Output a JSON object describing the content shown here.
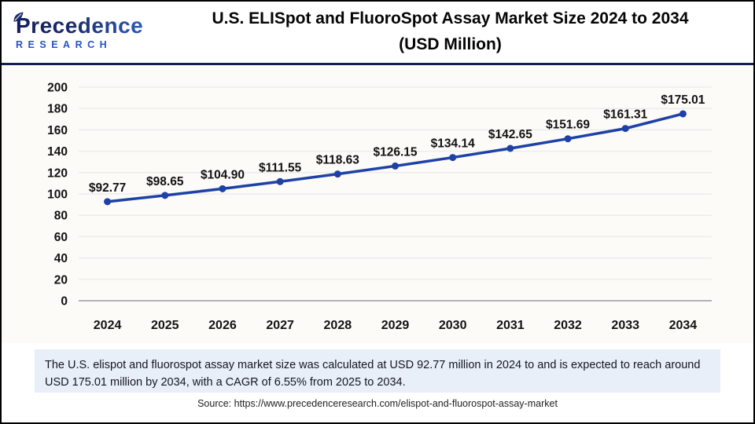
{
  "header": {
    "logo": {
      "name": "Precedence",
      "subtitle": "RESEARCH"
    },
    "title_line1": "U.S. ELISpot and FluoroSpot Assay Market Size 2024 to 2034",
    "title_line2": "(USD Million)"
  },
  "chart_data": {
    "type": "line",
    "title": "U.S. ELISpot and FluoroSpot Assay Market Size 2024 to 2034 (USD Million)",
    "categories": [
      "2024",
      "2025",
      "2026",
      "2027",
      "2028",
      "2029",
      "2030",
      "2031",
      "2032",
      "2033",
      "2034"
    ],
    "values": [
      92.77,
      98.65,
      104.9,
      111.55,
      118.63,
      126.15,
      134.14,
      142.65,
      151.69,
      161.31,
      175.01
    ],
    "labels": [
      "$92.77",
      "$98.65",
      "$104.90",
      "$111.55",
      "$118.63",
      "$126.15",
      "$134.14",
      "$142.65",
      "$151.69",
      "$161.31",
      "$175.01"
    ],
    "xlabel": "",
    "ylabel": "",
    "ylim": [
      0,
      200
    ],
    "ytick_step": 20,
    "grid": true,
    "legend": "none",
    "series_color": "#1e41a8",
    "grid_color": "#ececec",
    "axis_color": "#b3b3b3"
  },
  "footnote": "The U.S. elispot and fluorospot assay market size was calculated at USD 92.77 million in 2024 to and is expected to reach around USD 175.01 million by 2034, with a CAGR of 6.55% from 2025 to 2034.",
  "source": "Source: https://www.precedenceresearch.com/elispot-and-fluorospot-assay-market",
  "colors": {
    "accent": "#1e41a8",
    "separator": "#161f52",
    "footnote_bg": "#e8eff9",
    "logo_navy": "#1b2a6b",
    "logo_blue": "#2e6fd6"
  }
}
